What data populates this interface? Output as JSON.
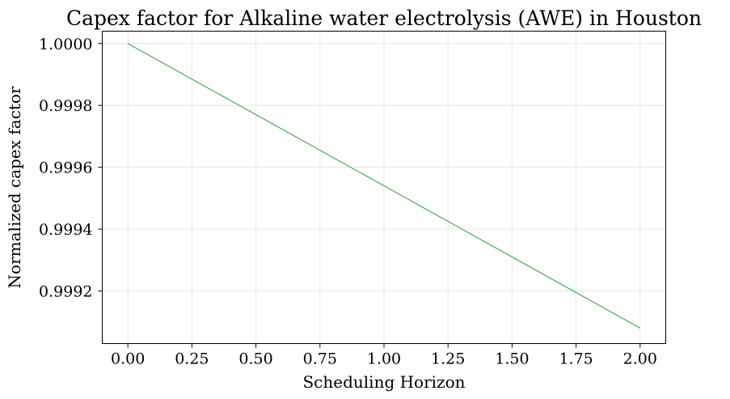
{
  "chart_data": {
    "type": "line",
    "title": "Capex factor for Alkaline water electrolysis (AWE) in Houston",
    "xlabel": "Scheduling Horizon",
    "ylabel": "Normalized capex factor",
    "xlim": [
      -0.1,
      2.1
    ],
    "ylim": [
      0.99903,
      1.00004
    ],
    "x_ticks": [
      0.0,
      0.25,
      0.5,
      0.75,
      1.0,
      1.25,
      1.5,
      1.75,
      2.0
    ],
    "x_tick_labels": [
      "0.00",
      "0.25",
      "0.50",
      "0.75",
      "1.00",
      "1.25",
      "1.50",
      "1.75",
      "2.00"
    ],
    "y_ticks": [
      0.9992,
      0.9994,
      0.9996,
      0.9998,
      1.0
    ],
    "y_tick_labels": [
      "0.9992",
      "0.9994",
      "0.9996",
      "0.9998",
      "1.0000"
    ],
    "grid": true,
    "series": [
      {
        "color": "#2ca02c",
        "x": [
          0.0,
          2.0
        ],
        "y": [
          1.0,
          0.99908
        ]
      }
    ]
  }
}
